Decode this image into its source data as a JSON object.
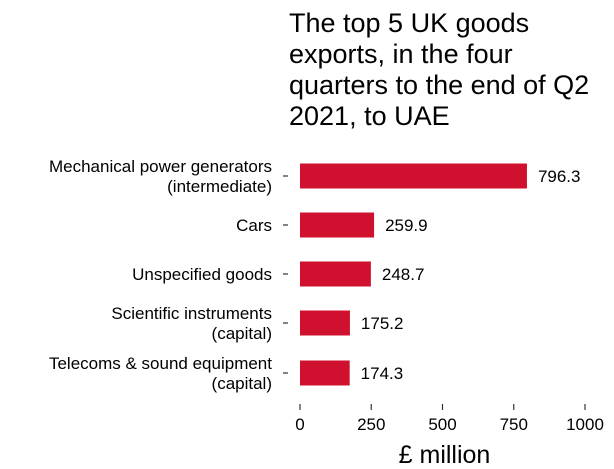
{
  "chart_data": {
    "type": "bar",
    "orientation": "horizontal",
    "title_lines": [
      "The top 5 UK goods",
      "exports, in the four",
      "quarters to the end of Q2",
      "2021, to UAE"
    ],
    "categories": [
      [
        "Mechanical power generators",
        "(intermediate)"
      ],
      [
        "Cars"
      ],
      [
        "Unspecified goods"
      ],
      [
        "Scientific instruments",
        "(capital)"
      ],
      [
        "Telecoms & sound equipment",
        "(capital)"
      ]
    ],
    "values": [
      796.3,
      259.9,
      248.7,
      175.2,
      174.3
    ],
    "value_labels": [
      "796.3",
      "259.9",
      "248.7",
      "175.2",
      "174.3"
    ],
    "xlabel": "£ million",
    "ylabel": "",
    "xlim": [
      0,
      1000
    ],
    "xticks": [
      0,
      250,
      500,
      750,
      1000
    ],
    "xtick_labels": [
      "0",
      "250",
      "500",
      "750",
      "1000"
    ],
    "bar_color": "#d0102f",
    "grid": false,
    "legend": "none"
  }
}
